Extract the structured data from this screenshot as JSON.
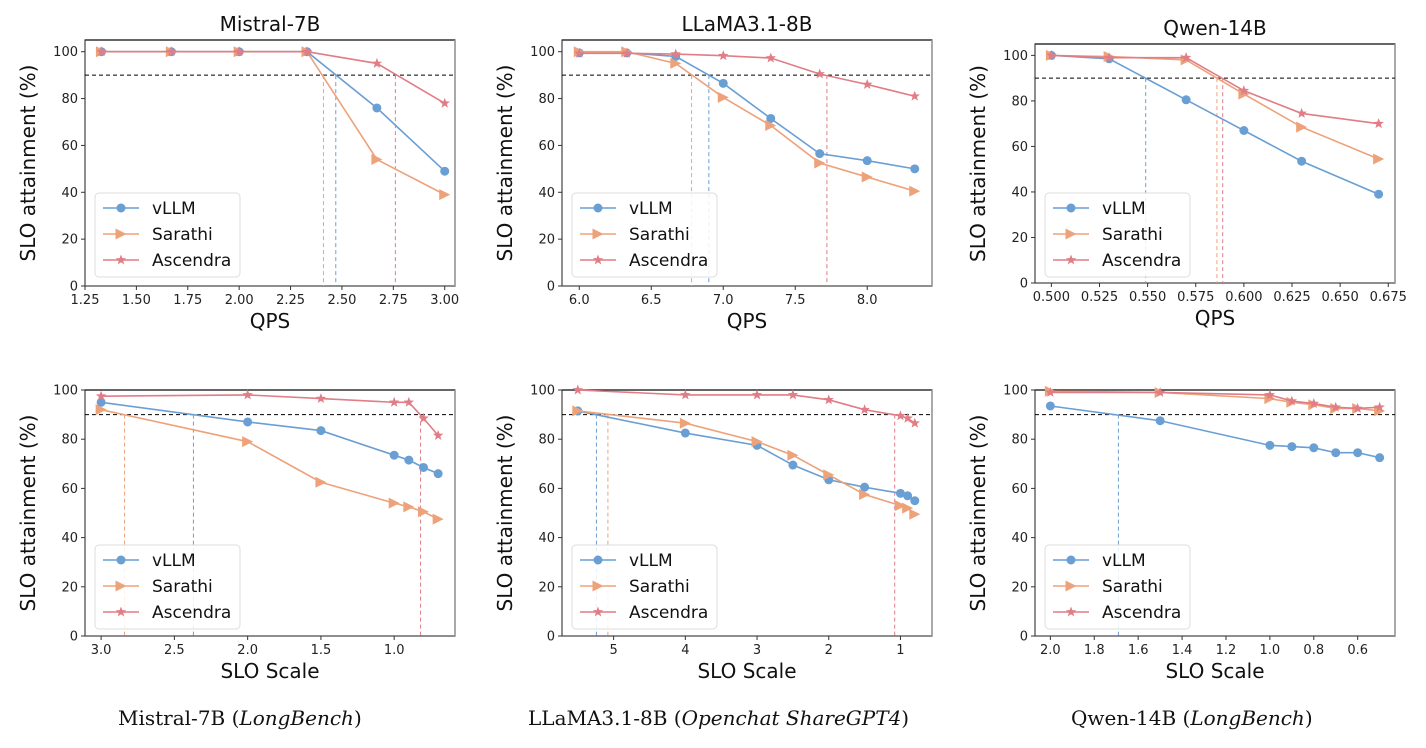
{
  "colors": {
    "vLLM": "#6a9fd4",
    "Sarathi": "#eda27a",
    "Ascendra": "#e07d86",
    "threshold": "#000000"
  },
  "legend": [
    "vLLM",
    "Sarathi",
    "Ascendra"
  ],
  "captions": [
    {
      "model": "Mistral-7B",
      "dataset": "LongBench"
    },
    {
      "model": "LLaMA3.1-8B",
      "dataset": "Openchat ShareGPT4"
    },
    {
      "model": "Qwen-14B",
      "dataset": "LongBench"
    }
  ],
  "chart_data": [
    {
      "type": "line",
      "title": "Mistral-7B",
      "xlabel": "QPS",
      "ylabel": "SLO attainment (%)",
      "xlim": [
        1.25,
        3.05
      ],
      "ylim": [
        0,
        105
      ],
      "xticks": [
        1.25,
        1.5,
        1.75,
        2.0,
        2.25,
        2.5,
        2.75,
        3.0
      ],
      "xtick_labels": [
        "1.25",
        "1.50",
        "1.75",
        "2.00",
        "2.25",
        "2.50",
        "2.75",
        "3.00"
      ],
      "yticks": [
        0,
        20,
        40,
        60,
        80,
        100
      ],
      "reversed_x": false,
      "threshold": 90,
      "legend_position": "lower-left",
      "series": [
        {
          "name": "vLLM",
          "marker": "circle",
          "x": [
            1.33,
            1.67,
            2.0,
            2.33,
            2.67,
            3.0
          ],
          "y": [
            100,
            100,
            100,
            100,
            76,
            49
          ],
          "crossing": 2.47
        },
        {
          "name": "Sarathi",
          "marker": "triangle-right",
          "x": [
            1.33,
            1.67,
            2.0,
            2.33,
            2.67,
            3.0
          ],
          "y": [
            100,
            100,
            100,
            100,
            54,
            39
          ],
          "crossing": 2.41
        },
        {
          "name": "Ascendra",
          "marker": "star",
          "x": [
            1.33,
            1.67,
            2.0,
            2.33,
            2.67,
            3.0
          ],
          "y": [
            100,
            100,
            100,
            100,
            95,
            78
          ],
          "crossing": 2.76
        }
      ]
    },
    {
      "type": "line",
      "title": "LLaMA3.1-8B",
      "xlabel": "QPS",
      "ylabel": "SLO attainment (%)",
      "xlim": [
        5.88,
        8.45
      ],
      "ylim": [
        0,
        105
      ],
      "xticks": [
        6.0,
        6.5,
        7.0,
        7.5,
        8.0
      ],
      "xtick_labels": [
        "6.0",
        "6.5",
        "7.0",
        "7.5",
        "8.0"
      ],
      "yticks": [
        0,
        20,
        40,
        60,
        80,
        100
      ],
      "reversed_x": false,
      "threshold": 90,
      "legend_position": "lower-left",
      "series": [
        {
          "name": "vLLM",
          "marker": "circle",
          "x": [
            6.0,
            6.33,
            6.67,
            7.0,
            7.33,
            7.67,
            8.0,
            8.33
          ],
          "y": [
            99.5,
            99.5,
            98,
            86.5,
            71.5,
            56.5,
            53.5,
            50
          ],
          "crossing": 6.9
        },
        {
          "name": "Sarathi",
          "marker": "triangle-right",
          "x": [
            6.0,
            6.33,
            6.67,
            7.0,
            7.33,
            7.67,
            8.0,
            8.33
          ],
          "y": [
            100,
            100,
            95,
            80.5,
            68.5,
            52.5,
            46.5,
            40.5
          ],
          "crossing": 6.78
        },
        {
          "name": "Ascendra",
          "marker": "star",
          "x": [
            6.0,
            6.33,
            6.67,
            7.0,
            7.33,
            7.67,
            8.0,
            8.33
          ],
          "y": [
            99.3,
            99.3,
            99,
            98.3,
            97.3,
            90.5,
            86,
            81
          ],
          "crossing": 7.72
        }
      ]
    },
    {
      "type": "line",
      "title": "Qwen-14B",
      "xlabel": "QPS",
      "ylabel": "SLO attainment (%)",
      "xlim": [
        0.4915,
        0.6785
      ],
      "ylim": [
        0,
        105
      ],
      "xticks": [
        0.5,
        0.525,
        0.55,
        0.575,
        0.6,
        0.625,
        0.65,
        0.675
      ],
      "xtick_labels": [
        "0.500",
        "0.525",
        "0.550",
        "0.575",
        "0.600",
        "0.625",
        "0.650",
        "0.675"
      ],
      "yticks": [
        0,
        20,
        40,
        60,
        80,
        100
      ],
      "reversed_x": false,
      "threshold": 90,
      "legend_position": "lower-left",
      "series": [
        {
          "name": "vLLM",
          "marker": "circle",
          "x": [
            0.5,
            0.53,
            0.57,
            0.6,
            0.63,
            0.67
          ],
          "y": [
            100,
            98.5,
            80.5,
            67,
            53.5,
            39
          ],
          "crossing": 0.549
        },
        {
          "name": "Sarathi",
          "marker": "triangle-right",
          "x": [
            0.5,
            0.53,
            0.57,
            0.6,
            0.63,
            0.67
          ],
          "y": [
            100,
            99.5,
            98,
            83,
            68.5,
            54.5
          ],
          "crossing": 0.586
        },
        {
          "name": "Ascendra",
          "marker": "star",
          "x": [
            0.5,
            0.53,
            0.57,
            0.6,
            0.63,
            0.67
          ],
          "y": [
            100,
            99,
            99,
            84.5,
            74.5,
            70
          ],
          "crossing": 0.589
        }
      ]
    },
    {
      "type": "line",
      "title": "",
      "xlabel": "SLO Scale",
      "ylabel": "SLO attainment (%)",
      "xlim": [
        3.11,
        0.585
      ],
      "ylim": [
        0,
        100
      ],
      "xticks": [
        3.0,
        2.5,
        2.0,
        1.5,
        1.0
      ],
      "xtick_labels": [
        "3.0",
        "2.5",
        "2.0",
        "1.5",
        "1.0"
      ],
      "yticks": [
        0,
        20,
        40,
        60,
        80,
        100
      ],
      "reversed_x": true,
      "threshold": 90,
      "legend_position": "lower-left",
      "series": [
        {
          "name": "vLLM",
          "marker": "circle",
          "x": [
            3.0,
            2.0,
            1.5,
            1.0,
            0.9,
            0.8,
            0.7
          ],
          "y": [
            95,
            87,
            83.5,
            73.5,
            71.5,
            68.5,
            66
          ],
          "crossing": 2.37
        },
        {
          "name": "Sarathi",
          "marker": "triangle-right",
          "x": [
            3.0,
            2.0,
            1.5,
            1.0,
            0.9,
            0.8,
            0.7
          ],
          "y": [
            92,
            79,
            62.5,
            54,
            52.5,
            50.5,
            47.5
          ],
          "crossing": 2.84
        },
        {
          "name": "Ascendra",
          "marker": "star",
          "x": [
            3.0,
            2.0,
            1.5,
            1.0,
            0.9,
            0.8,
            0.7
          ],
          "y": [
            97.5,
            98,
            96.5,
            95,
            95,
            88.5,
            81.5
          ],
          "crossing": 0.82
        }
      ]
    },
    {
      "type": "line",
      "title": "",
      "xlabel": "SLO Scale",
      "ylabel": "SLO attainment (%)",
      "xlim": [
        5.72,
        0.56
      ],
      "ylim": [
        0,
        100
      ],
      "xticks": [
        5,
        4,
        3,
        2,
        1
      ],
      "xtick_labels": [
        "5",
        "4",
        "3",
        "2",
        "1"
      ],
      "yticks": [
        0,
        20,
        40,
        60,
        80,
        100
      ],
      "reversed_x": true,
      "threshold": 90,
      "legend_position": "lower-left",
      "series": [
        {
          "name": "vLLM",
          "marker": "circle",
          "x": [
            5.5,
            4.0,
            3.0,
            2.5,
            2.0,
            1.5,
            1.0,
            0.9,
            0.8
          ],
          "y": [
            91.5,
            82.5,
            77.5,
            69.5,
            63.5,
            60.5,
            58,
            57,
            55
          ],
          "crossing": 5.24
        },
        {
          "name": "Sarathi",
          "marker": "triangle-right",
          "x": [
            5.5,
            4.0,
            3.0,
            2.5,
            2.0,
            1.5,
            1.0,
            0.9,
            0.8
          ],
          "y": [
            91.5,
            86.5,
            79,
            73.5,
            65.5,
            57.5,
            53,
            52,
            49.5
          ],
          "crossing": 5.08
        },
        {
          "name": "Ascendra",
          "marker": "star",
          "x": [
            5.5,
            4.0,
            3.0,
            2.5,
            2.0,
            1.5,
            1.0,
            0.9,
            0.8
          ],
          "y": [
            100,
            98,
            98,
            98,
            96,
            92,
            89.5,
            88.5,
            86.5
          ],
          "crossing": 1.08
        }
      ]
    },
    {
      "type": "line",
      "title": "",
      "xlabel": "SLO Scale",
      "ylabel": "SLO attainment (%)",
      "xlim": [
        2.07,
        0.43
      ],
      "ylim": [
        0,
        100
      ],
      "xticks": [
        2.0,
        1.8,
        1.6,
        1.4,
        1.2,
        1.0,
        0.8,
        0.6
      ],
      "xtick_labels": [
        "2.0",
        "1.8",
        "1.6",
        "1.4",
        "1.2",
        "1.0",
        "0.8",
        "0.6"
      ],
      "yticks": [
        0,
        20,
        40,
        60,
        80,
        100
      ],
      "reversed_x": true,
      "threshold": 90,
      "legend_position": "lower-left",
      "series": [
        {
          "name": "vLLM",
          "marker": "circle",
          "x": [
            2.0,
            1.5,
            1.0,
            0.9,
            0.8,
            0.7,
            0.6,
            0.5
          ],
          "y": [
            93.5,
            87.5,
            77.5,
            77,
            76.5,
            74.5,
            74.5,
            72.5
          ],
          "crossing": 1.69
        },
        {
          "name": "Sarathi",
          "marker": "triangle-right",
          "x": [
            2.0,
            1.5,
            1.0,
            0.9,
            0.8,
            0.7,
            0.6,
            0.5
          ],
          "y": [
            99.5,
            99,
            96.5,
            95,
            94,
            92.5,
            92.5,
            91.5
          ],
          "crossing": null
        },
        {
          "name": "Ascendra",
          "marker": "star",
          "x": [
            2.0,
            1.5,
            1.0,
            0.9,
            0.8,
            0.7,
            0.6,
            0.5
          ],
          "y": [
            99,
            99,
            98,
            95.5,
            94.5,
            93,
            92.5,
            93
          ],
          "crossing": null
        }
      ]
    }
  ]
}
